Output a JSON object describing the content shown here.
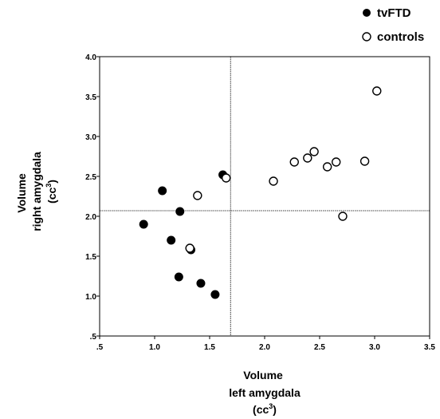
{
  "chart_data": {
    "type": "scatter",
    "xlabel_lines": [
      "Volume",
      "left amygdala",
      "(cc",
      "3",
      ")"
    ],
    "ylabel_lines": [
      "Volume",
      "right amygdala",
      "(cc",
      "3",
      ")"
    ],
    "xlim": [
      0.5,
      3.5
    ],
    "ylim": [
      0.5,
      4.0
    ],
    "x_ticks": [
      0.5,
      1.0,
      1.5,
      2.0,
      2.5,
      3.0,
      3.5
    ],
    "x_tick_labels": [
      ".5",
      "1.0",
      "1.5",
      "2.0",
      "2.5",
      "3.0",
      "3.5"
    ],
    "y_ticks": [
      0.5,
      1.0,
      1.5,
      2.0,
      2.5,
      3.0,
      3.5,
      4.0
    ],
    "y_tick_labels": [
      ".5",
      "1.0",
      "1.5",
      "2.0",
      "2.5",
      "3.0",
      "3.5",
      "4.0"
    ],
    "reference_lines": {
      "x": 1.69,
      "y": 2.07
    },
    "legend_position": "top-right",
    "grid": false,
    "series": [
      {
        "name": "tvFTD",
        "marker": "filled-circle",
        "color": "#000000",
        "points": [
          [
            0.9,
            1.9
          ],
          [
            1.07,
            2.32
          ],
          [
            1.15,
            1.7
          ],
          [
            1.23,
            2.06
          ],
          [
            1.22,
            1.24
          ],
          [
            1.33,
            1.58
          ],
          [
            1.42,
            1.16
          ],
          [
            1.55,
            1.02
          ],
          [
            1.62,
            2.52
          ]
        ]
      },
      {
        "name": "controls",
        "marker": "open-circle",
        "color": "#000000",
        "points": [
          [
            1.32,
            1.6
          ],
          [
            1.39,
            2.26
          ],
          [
            1.65,
            2.48
          ],
          [
            2.08,
            2.44
          ],
          [
            2.27,
            2.68
          ],
          [
            2.39,
            2.73
          ],
          [
            2.45,
            2.81
          ],
          [
            2.57,
            2.62
          ],
          [
            2.65,
            2.68
          ],
          [
            2.71,
            2.0
          ],
          [
            2.91,
            2.69
          ],
          [
            3.02,
            3.57
          ]
        ]
      }
    ]
  }
}
